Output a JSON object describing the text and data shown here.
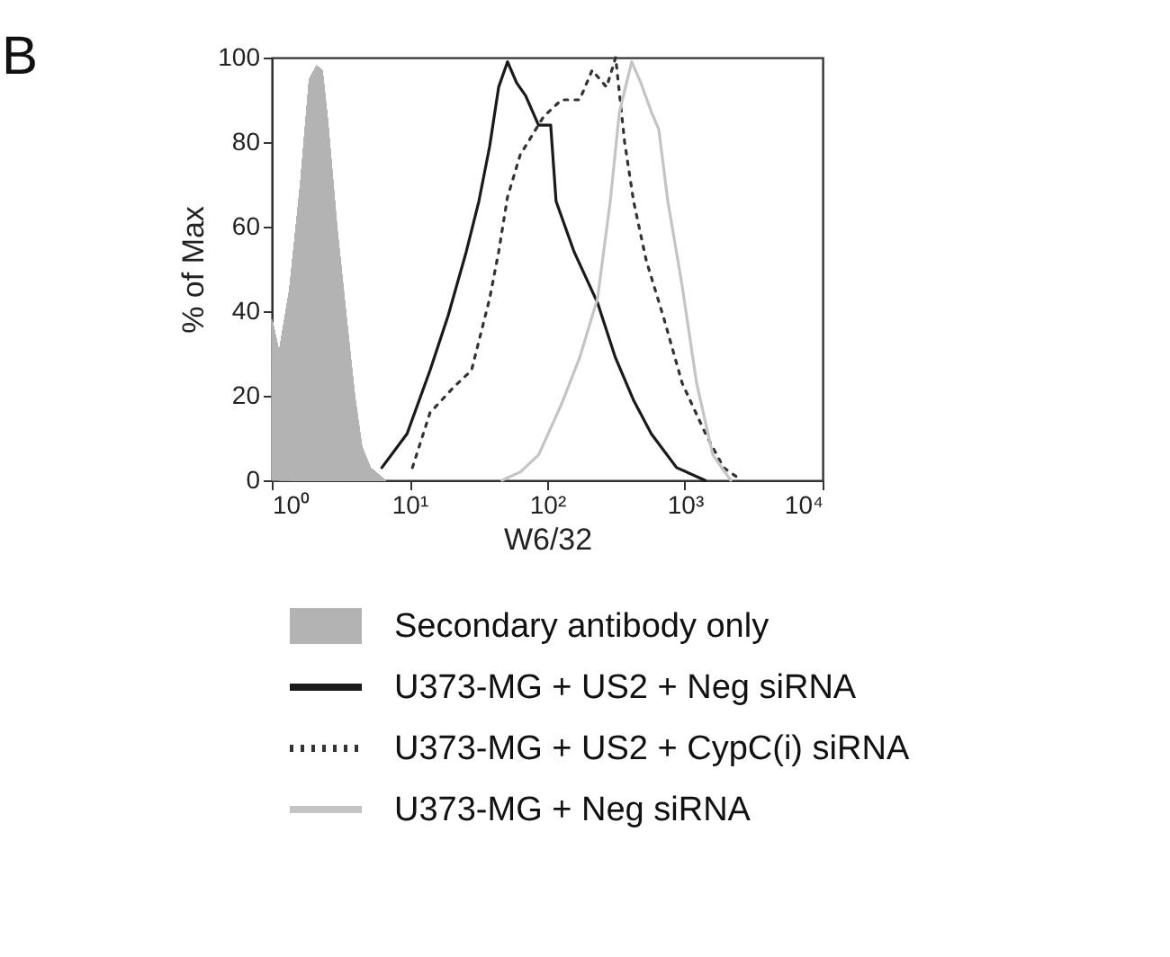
{
  "chart_data": {
    "type": "line",
    "xlabel": "W6/32",
    "ylabel": "% of Max",
    "annotations": [
      "B"
    ],
    "log": "x",
    "xlim": [
      1,
      10000
    ],
    "xticks": [
      {
        "value": 1,
        "label": "10⁰"
      },
      {
        "value": 10,
        "label": "10¹"
      },
      {
        "value": 100,
        "label": "10²"
      },
      {
        "value": 1000,
        "label": "10³"
      },
      {
        "value": 10000,
        "label": "10⁴"
      }
    ],
    "ylim": [
      0,
      100
    ],
    "yticks": [
      0,
      20,
      40,
      60,
      80,
      100
    ],
    "grid": false,
    "legend": "bottom",
    "series": [
      {
        "name": "Secondary antibody only",
        "type": "area",
        "color": "#b3b3b3",
        "x": [
          1,
          1.13,
          1.35,
          1.62,
          1.88,
          2.12,
          2.32,
          2.54,
          2.96,
          3.43,
          3.99,
          4.5,
          5.2,
          6.7
        ],
        "values": [
          38,
          30,
          45,
          70,
          95,
          98,
          97,
          85,
          60,
          40,
          20,
          8,
          3,
          0
        ]
      },
      {
        "name": "U373-MG + US2 + Neg siRNA",
        "line_style": "solid",
        "color": "#1a1a1a",
        "x": [
          6.3,
          9.6,
          14.1,
          19.1,
          25.8,
          31.9,
          38.2,
          44.4,
          51.5,
          60,
          69.7,
          86.5,
          106,
          116,
          157,
          232,
          313,
          423,
          570,
          870,
          1400
        ],
        "values": [
          3,
          11,
          26,
          39,
          54,
          66,
          79,
          93,
          99,
          94,
          91,
          84,
          84,
          66,
          54,
          42,
          29,
          19,
          11,
          3,
          0
        ]
      },
      {
        "name": "U373-MG + US2 + CypC(i) siRNA",
        "line_style": "dotted",
        "color": "#333333",
        "x": [
          10.5,
          14.1,
          20.9,
          28.2,
          38.2,
          44.4,
          51.5,
          63.7,
          94,
          127,
          172,
          212,
          270,
          314,
          365,
          424,
          524,
          708,
          955,
          1413,
          1910,
          2580
        ],
        "values": [
          3,
          16,
          22,
          26,
          43,
          54,
          67,
          77,
          86,
          90,
          90,
          97,
          93,
          100,
          80,
          66,
          52,
          38,
          23,
          11,
          3,
          0
        ]
      },
      {
        "name": "U373-MG + Neg siRNA",
        "line_style": "solid",
        "color": "#c4c4c4",
        "x": [
          47,
          64,
          86.5,
          127,
          172,
          232,
          287,
          334,
          411,
          479,
          573,
          646,
          752,
          955,
          1216,
          1595,
          2155
        ],
        "values": [
          0,
          2,
          6,
          18,
          29,
          43,
          66,
          87,
          99,
          94,
          87,
          83,
          66,
          46,
          23,
          6,
          0
        ]
      }
    ]
  }
}
